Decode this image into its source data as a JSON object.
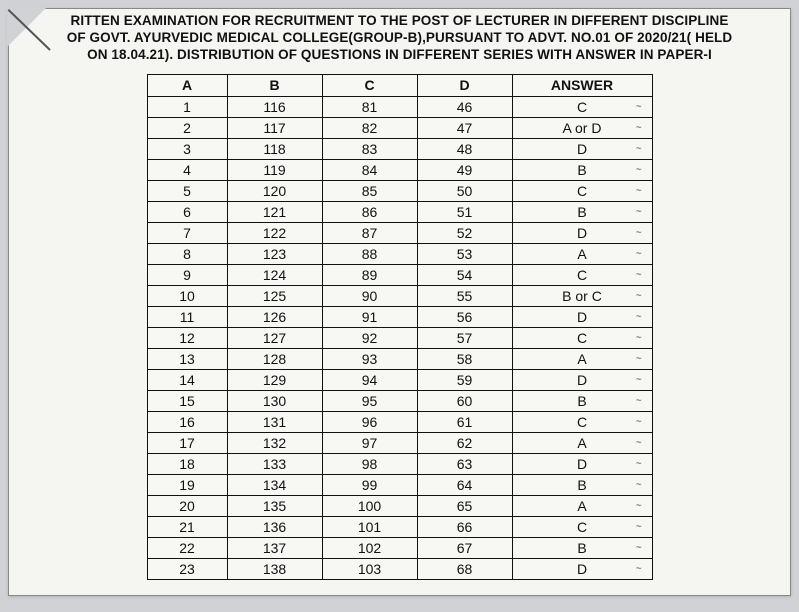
{
  "header": {
    "line1": "RITTEN EXAMINATION FOR RECRUITMENT TO THE POST OF LECTURER IN DIFFERENT DISCIPLINE",
    "line2": "OF GOVT. AYURVEDIC MEDICAL COLLEGE(GROUP-B),PURSUANT TO ADVT. NO.01 OF 2020/21( HELD",
    "line3": "ON 18.04.21). DISTRIBUTION OF QUESTIONS IN DIFFERENT SERIES WITH ANSWER IN PAPER-I"
  },
  "table": {
    "columns": [
      "A",
      "B",
      "C",
      "D",
      "ANSWER"
    ],
    "rows": [
      [
        "1",
        "116",
        "81",
        "46",
        "C"
      ],
      [
        "2",
        "117",
        "82",
        "47",
        "A or D"
      ],
      [
        "3",
        "118",
        "83",
        "48",
        "D"
      ],
      [
        "4",
        "119",
        "84",
        "49",
        "B"
      ],
      [
        "5",
        "120",
        "85",
        "50",
        "C"
      ],
      [
        "6",
        "121",
        "86",
        "51",
        "B"
      ],
      [
        "7",
        "122",
        "87",
        "52",
        "D"
      ],
      [
        "8",
        "123",
        "88",
        "53",
        "A"
      ],
      [
        "9",
        "124",
        "89",
        "54",
        "C"
      ],
      [
        "10",
        "125",
        "90",
        "55",
        "B or C"
      ],
      [
        "11",
        "126",
        "91",
        "56",
        "D"
      ],
      [
        "12",
        "127",
        "92",
        "57",
        "C"
      ],
      [
        "13",
        "128",
        "93",
        "58",
        "A"
      ],
      [
        "14",
        "129",
        "94",
        "59",
        "D"
      ],
      [
        "15",
        "130",
        "95",
        "60",
        "B"
      ],
      [
        "16",
        "131",
        "96",
        "61",
        "C"
      ],
      [
        "17",
        "132",
        "97",
        "62",
        "A"
      ],
      [
        "18",
        "133",
        "98",
        "63",
        "D"
      ],
      [
        "19",
        "134",
        "99",
        "64",
        "B"
      ],
      [
        "20",
        "135",
        "100",
        "65",
        "A"
      ],
      [
        "21",
        "136",
        "101",
        "66",
        "C"
      ],
      [
        "22",
        "137",
        "102",
        "67",
        "B"
      ],
      [
        "23",
        "138",
        "103",
        "68",
        "D"
      ]
    ]
  },
  "style": {
    "page_bg": "#f5f5f2",
    "outer_bg": "#d0d2d6",
    "border_color": "#111",
    "text_color": "#111",
    "header_fontsize": 13.5,
    "cell_fontsize": 14,
    "col_widths": {
      "A": 80,
      "B": 95,
      "C": 95,
      "D": 95,
      "ANSWER": 140
    }
  }
}
